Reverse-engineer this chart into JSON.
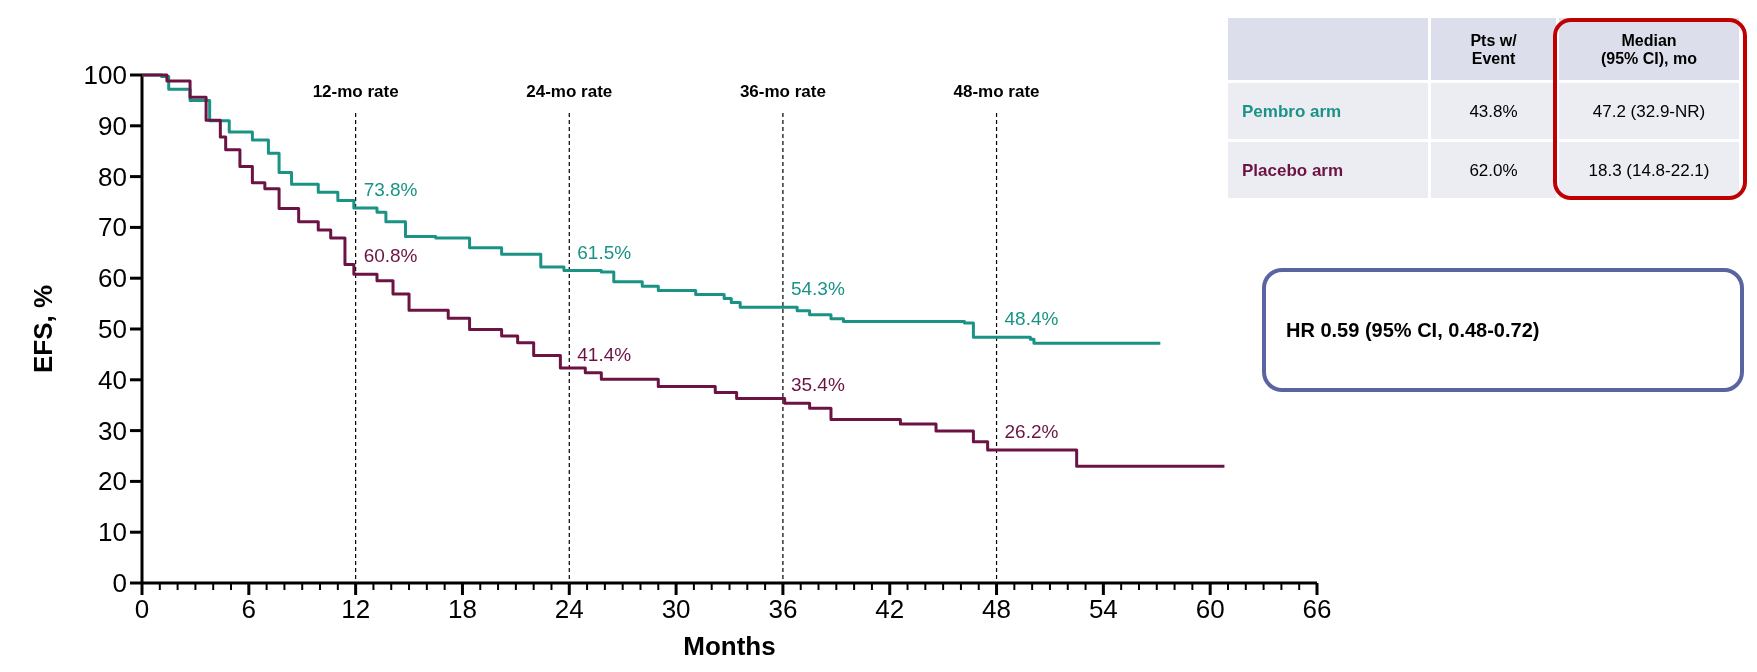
{
  "chart_data": {
    "type": "step",
    "xlabel": "Months",
    "ylabel": "EFS, %",
    "xlim": [
      0,
      66
    ],
    "ylim": [
      0,
      100
    ],
    "xticks": [
      0,
      {
        "value": 1,
        "label": null
      },
      {
        "value": 2,
        "label": null
      },
      {
        "value": 3,
        "label": null
      },
      {
        "value": 4,
        "label": null
      },
      {
        "value": 5,
        "label": null
      },
      6,
      {
        "value": 7,
        "label": null
      },
      {
        "value": 8,
        "label": null
      },
      {
        "value": 9,
        "label": null
      },
      {
        "value": 10,
        "label": null
      },
      {
        "value": 11,
        "label": null
      },
      12,
      {
        "value": 13,
        "label": null
      },
      {
        "value": 14,
        "label": null
      },
      {
        "value": 15,
        "label": null
      },
      {
        "value": 16,
        "label": null
      },
      {
        "value": 17,
        "label": null
      },
      18,
      {
        "value": 19,
        "label": null
      },
      {
        "value": 20,
        "label": null
      },
      {
        "value": 21,
        "label": null
      },
      {
        "value": 22,
        "label": null
      },
      {
        "value": 23,
        "label": null
      },
      24,
      {
        "value": 25,
        "label": null
      },
      {
        "value": 26,
        "label": null
      },
      {
        "value": 27,
        "label": null
      },
      {
        "value": 28,
        "label": null
      },
      {
        "value": 29,
        "label": null
      },
      30,
      {
        "value": 31,
        "label": null
      },
      {
        "value": 32,
        "label": null
      },
      {
        "value": 33,
        "label": null
      },
      {
        "value": 34,
        "label": null
      },
      {
        "value": 35,
        "label": null
      },
      36,
      {
        "value": 37,
        "label": null
      },
      {
        "value": 38,
        "label": null
      },
      {
        "value": 39,
        "label": null
      },
      {
        "value": 40,
        "label": null
      },
      {
        "value": 41,
        "label": null
      },
      42,
      {
        "value": 43,
        "label": null
      },
      {
        "value": 44,
        "label": null
      },
      {
        "value": 45,
        "label": null
      },
      {
        "value": 46,
        "label": null
      },
      {
        "value": 47,
        "label": null
      },
      48,
      {
        "value": 49,
        "label": null
      },
      {
        "value": 50,
        "label": null
      },
      {
        "value": 51,
        "label": null
      },
      {
        "value": 52,
        "label": null
      },
      {
        "value": 53,
        "label": null
      },
      54,
      {
        "value": 55,
        "label": null
      },
      {
        "value": 56,
        "label": null
      },
      {
        "value": 57,
        "label": null
      },
      {
        "value": 58,
        "label": null
      },
      {
        "value": 59,
        "label": null
      },
      60,
      {
        "value": 61,
        "label": null
      },
      {
        "value": 62,
        "label": null
      },
      {
        "value": 63,
        "label": null
      },
      {
        "value": 64,
        "label": null
      },
      {
        "value": 65,
        "label": null
      },
      66
    ],
    "yticks": [
      0,
      10,
      20,
      30,
      40,
      50,
      60,
      70,
      80,
      90,
      100
    ],
    "grid": false,
    "legend": "top right",
    "series": [
      {
        "name": "Pembro arm",
        "color": "#1a9385",
        "x": [
          0,
          1.1,
          1.5,
          2.7,
          3.8,
          4.9,
          6.2,
          7.1,
          7.7,
          8.4,
          9.9,
          11.0,
          11.9,
          13.2,
          13.7,
          14.8,
          16.5,
          18.4,
          20.2,
          22.4,
          23.7,
          25.8,
          26.5,
          28.1,
          29.0,
          31.1,
          32.7,
          33.1,
          33.6,
          36.8,
          37.5,
          38.7,
          39.4,
          46.2,
          46.7,
          49.9,
          50.1,
          57.2
        ],
        "values": [
          100,
          99.7,
          97.2,
          95,
          91,
          88.8,
          87.2,
          84.6,
          80.8,
          78.5,
          76.9,
          75.3,
          73.8,
          73.0,
          71.1,
          68.2,
          67.9,
          66,
          64.7,
          62.2,
          61.5,
          61.2,
          59.3,
          58.4,
          57.6,
          56.8,
          56,
          55.2,
          54.3,
          53.6,
          52.8,
          52.0,
          51.5,
          51.2,
          48.4,
          48.0,
          47.2,
          47.2
        ]
      },
      {
        "name": "Placebo arm",
        "color": "#6b1444",
        "x": [
          0,
          1.4,
          2.7,
          3.6,
          4.4,
          4.7,
          5.5,
          6.2,
          6.9,
          7.7,
          8.8,
          9.9,
          10.6,
          11.4,
          11.9,
          13.2,
          14.1,
          15,
          17.2,
          18.4,
          20.2,
          21.1,
          22.0,
          23.5,
          24.9,
          25.8,
          29.0,
          32.2,
          33.4,
          36.1,
          37.5,
          38.7,
          42.6,
          44.6,
          46.7,
          47.5,
          52.5,
          60.8
        ],
        "values": [
          100,
          98.8,
          95.6,
          91.1,
          87.8,
          85.3,
          82,
          78.8,
          77.6,
          73.7,
          71.1,
          69.5,
          67.9,
          62.7,
          60.8,
          59.5,
          56.9,
          53.7,
          52.1,
          49.9,
          48.6,
          47.3,
          44.8,
          42.3,
          41.4,
          40.1,
          38.7,
          37.5,
          36.3,
          35.4,
          34.4,
          32.2,
          31.3,
          29.9,
          27.8,
          26.2,
          23.0,
          23.0
        ]
      }
    ],
    "ref_lines": [
      {
        "axis": "x",
        "value": 12,
        "label": "12-mo rate",
        "color": "#000000",
        "line_style": "dashed"
      },
      {
        "axis": "x",
        "value": 24,
        "label": "24-mo rate",
        "color": "#000000",
        "line_style": "dashed"
      },
      {
        "axis": "x",
        "value": 36,
        "label": "36-mo rate",
        "color": "#000000",
        "line_style": "dashed"
      },
      {
        "axis": "x",
        "value": 48,
        "label": "48-mo rate",
        "color": "#000000",
        "line_style": "dashed"
      }
    ],
    "annotations": [
      {
        "text": "73.8%",
        "x": 12,
        "y": 73.8
      },
      {
        "text": "60.8%",
        "x": 12,
        "y": 60.8
      },
      {
        "text": "61.5%",
        "x": 24,
        "y": 61.5
      },
      {
        "text": "41.4%",
        "x": 24,
        "y": 41.4
      },
      {
        "text": "54.3%",
        "x": 36,
        "y": 54.3
      },
      {
        "text": "35.4%",
        "x": 36,
        "y": 35.4
      },
      {
        "text": "48.4%",
        "x": 48,
        "y": 48.4
      },
      {
        "text": "26.2%",
        "x": 48,
        "y": 26.2
      },
      "Pts w/\nEvent",
      "Median\n(95% CI), mo",
      "43.8%",
      "47.2 (32.9-NR)",
      "62.0%",
      "18.3 (14.8-22.1)",
      "HR 0.59 (95% CI, 0.48-0.72)"
    ]
  }
}
